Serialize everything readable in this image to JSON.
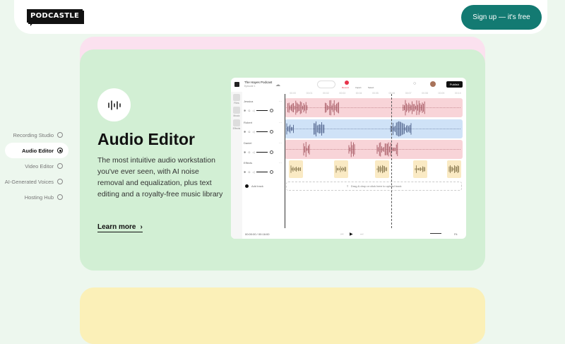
{
  "header": {
    "logo": "PODCASTLE",
    "signup_label": "Sign up — it's free",
    "brand_color": "#137a72"
  },
  "nav": {
    "items": [
      {
        "label": "Recording Studio",
        "active": false
      },
      {
        "label": "Audio Editor",
        "active": true
      },
      {
        "label": "Video Editor",
        "active": false
      },
      {
        "label": "AI-Generated Voices",
        "active": false
      },
      {
        "label": "Hosting Hub",
        "active": false
      }
    ]
  },
  "feature": {
    "icon": "waveform-icon",
    "title": "Audio Editor",
    "description": "The most intuitive audio workstation you've ever seen, with AI noise removal and equalization, plus text editing and a royalty-free music library",
    "learn_more": "Learn more"
  },
  "editor": {
    "project_title": "The Hayes Podcast",
    "project_subtitle": "Episode 1",
    "record_label": "Record",
    "import_label": "Import",
    "select_label": "Select",
    "publish_label": "Publish",
    "sidebar": [
      "Files",
      "Music",
      "Effects"
    ],
    "ruler": [
      "00:00",
      "00:01",
      "00:02",
      "00:03",
      "00:04",
      "00:05",
      "00:06",
      "00:07",
      "00:08",
      "00:09",
      "00:10"
    ],
    "tracks": [
      {
        "name": "Jessica",
        "color": "#f8d4d8",
        "wave": "#9c4a55"
      },
      {
        "name": "Robert",
        "color": "#cfe2f7",
        "wave": "#3e527e"
      },
      {
        "name": "Daniel",
        "color": "#f8d4d8",
        "wave": "#9c4a55"
      },
      {
        "name": "Effects",
        "color": "#faeac4",
        "wave": "#7a6a40"
      }
    ],
    "add_track": "Add track",
    "upload": "Drag & drop or click here to upload track",
    "time": "00:00:00 / 00:16:00",
    "fit": "Fit"
  }
}
